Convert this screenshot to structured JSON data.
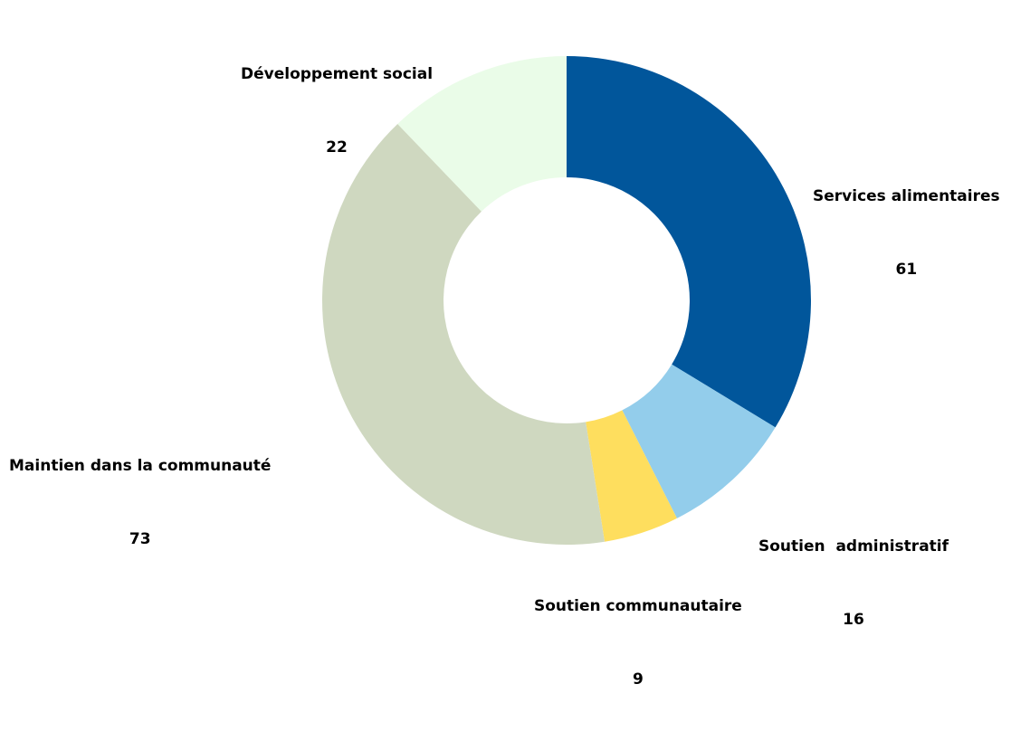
{
  "chart_data": {
    "type": "pie",
    "donut": true,
    "title": "",
    "legend": "none",
    "start_angle_deg": 0,
    "direction": "clockwise",
    "slices": [
      {
        "label": "Services alimentaires",
        "value": 61,
        "value_label": "61",
        "color": "#01569B"
      },
      {
        "label": "Soutien  administratif",
        "value": 16,
        "value_label": "16",
        "color": "#93CDEB"
      },
      {
        "label": "Soutien communautaire",
        "value": 9,
        "value_label": "9",
        "color": "#FEDE5E"
      },
      {
        "label": "Maintien dans la communauté",
        "value": 73,
        "value_label": "73",
        "color": "#CFD8C0"
      },
      {
        "label": "Développement social",
        "value": 22,
        "value_label": "22",
        "color": "#EAFCE8"
      }
    ]
  }
}
